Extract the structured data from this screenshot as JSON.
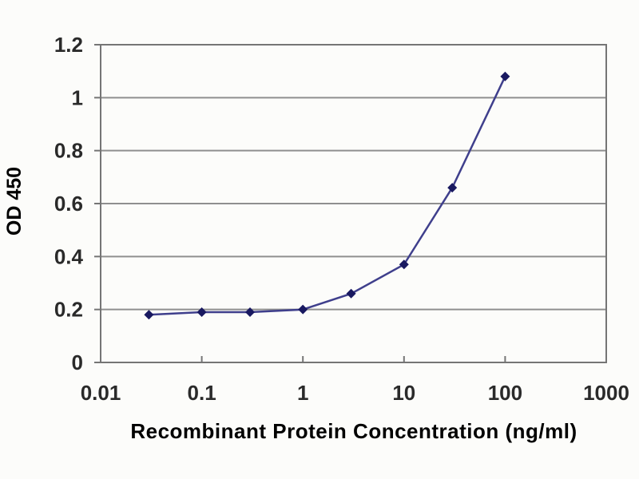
{
  "chart_data": {
    "type": "line",
    "title": "",
    "xlabel": "Recombinant Protein Concentration (ng/ml)",
    "ylabel": "OD 450",
    "x_scale": "log",
    "xlim": [
      0.01,
      1000
    ],
    "x_ticks": [
      0.01,
      0.1,
      1,
      10,
      100,
      1000
    ],
    "x_tick_labels": [
      "0.01",
      "0.1",
      "1",
      "10",
      "100",
      "1000"
    ],
    "ylim": [
      0,
      1.2
    ],
    "y_ticks": [
      0,
      0.2,
      0.4,
      0.6,
      0.8,
      1,
      1.2
    ],
    "y_tick_labels": [
      "0",
      "0.2",
      "0.4",
      "0.6",
      "0.8",
      "1",
      "1.2"
    ],
    "grid": "horizontal",
    "legend": "none",
    "series": [
      {
        "name": "OD 450",
        "marker": "diamond",
        "x": [
          0.03,
          0.1,
          0.3,
          1,
          3,
          10,
          30,
          100
        ],
        "y": [
          0.18,
          0.19,
          0.19,
          0.2,
          0.26,
          0.37,
          0.66,
          1.08
        ]
      }
    ]
  },
  "colors": {
    "background": "#fcfcfa",
    "plot_frame": "#757575",
    "gridline": "#8f8f8f",
    "tick": "#757575",
    "text": "#2a2a2a",
    "series_line": "#3f3f8c",
    "series_marker": "#191960"
  }
}
